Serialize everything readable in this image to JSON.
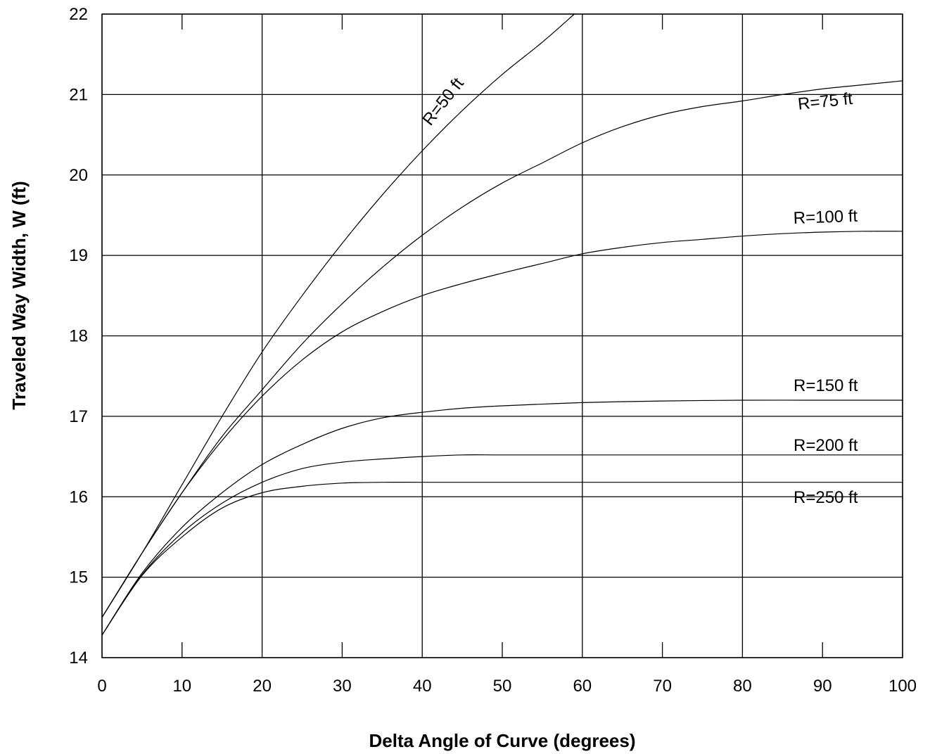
{
  "chart_data": {
    "type": "line",
    "title": "",
    "xlabel": "Delta Angle of Curve (degrees)",
    "ylabel": "Traveled Way Width, W (ft)",
    "xlim": [
      0,
      100
    ],
    "ylim": [
      14,
      22
    ],
    "xticks": [
      0,
      10,
      20,
      30,
      40,
      50,
      60,
      70,
      80,
      90,
      100
    ],
    "yticks": [
      14,
      15,
      16,
      17,
      18,
      19,
      20,
      21,
      22
    ],
    "grid": true,
    "legend": "none",
    "series": [
      {
        "name": "R=50 ft",
        "x": [
          0,
          5,
          10,
          15,
          20,
          25,
          30,
          35,
          40,
          45,
          50,
          55,
          59
        ],
        "y": [
          14.5,
          15.3,
          16.15,
          17.0,
          17.8,
          18.5,
          19.15,
          19.75,
          20.3,
          20.8,
          21.25,
          21.65,
          22.0
        ]
      },
      {
        "name": "R=75 ft",
        "x": [
          0,
          5,
          10,
          15,
          20,
          25,
          30,
          35,
          40,
          45,
          50,
          55,
          60,
          65,
          70,
          75,
          80,
          85,
          90,
          95,
          100
        ],
        "y": [
          14.5,
          15.3,
          16.05,
          16.75,
          17.33,
          17.9,
          18.4,
          18.85,
          19.25,
          19.6,
          19.9,
          20.15,
          20.4,
          20.6,
          20.75,
          20.85,
          20.92,
          21.0,
          21.07,
          21.12,
          21.17
        ]
      },
      {
        "name": "R=100 ft",
        "x": [
          0,
          5,
          10,
          15,
          20,
          25,
          30,
          35,
          40,
          45,
          50,
          55,
          60,
          65,
          70,
          75,
          80,
          85,
          90,
          95,
          100
        ],
        "y": [
          14.5,
          15.3,
          16.05,
          16.7,
          17.25,
          17.7,
          18.05,
          18.3,
          18.5,
          18.65,
          18.78,
          18.9,
          19.02,
          19.1,
          19.16,
          19.2,
          19.24,
          19.27,
          19.29,
          19.3,
          19.3
        ]
      },
      {
        "name": "R=150 ft",
        "x": [
          0,
          5,
          10,
          15,
          20,
          25,
          30,
          35,
          40,
          45,
          50,
          60,
          70,
          80,
          90,
          100
        ],
        "y": [
          14.28,
          15.05,
          15.62,
          16.05,
          16.4,
          16.65,
          16.85,
          16.98,
          17.05,
          17.1,
          17.13,
          17.17,
          17.19,
          17.2,
          17.2,
          17.2
        ]
      },
      {
        "name": "R=200 ft",
        "x": [
          0,
          5,
          10,
          15,
          20,
          25,
          30,
          35,
          40,
          45,
          50,
          60,
          70,
          80,
          90,
          100
        ],
        "y": [
          14.28,
          15.03,
          15.55,
          15.92,
          16.18,
          16.35,
          16.43,
          16.47,
          16.5,
          16.52,
          16.52,
          16.52,
          16.52,
          16.52,
          16.52,
          16.52
        ]
      },
      {
        "name": "R=250 ft",
        "x": [
          0,
          5,
          10,
          15,
          20,
          25,
          30,
          35,
          40,
          50,
          60,
          70,
          80,
          90,
          100
        ],
        "y": [
          14.28,
          15.02,
          15.5,
          15.86,
          16.05,
          16.13,
          16.17,
          16.18,
          16.18,
          16.18,
          16.18,
          16.18,
          16.18,
          16.18,
          16.18
        ]
      }
    ]
  }
}
